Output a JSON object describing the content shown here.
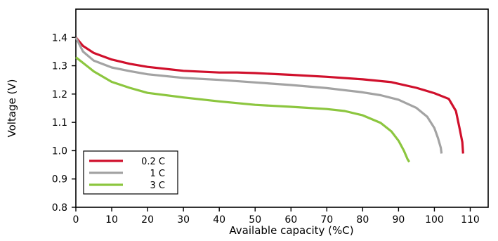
{
  "chart_data": {
    "type": "line",
    "title": "",
    "xlabel": "Available capacity (%C)",
    "ylabel": "Voltage (V)",
    "xlim": [
      0,
      115
    ],
    "ylim": [
      0.8,
      1.5
    ],
    "x_ticks": [
      "0",
      "10",
      "20",
      "30",
      "40",
      "50",
      "60",
      "70",
      "80",
      "90",
      "100",
      "110"
    ],
    "y_ticks": [
      "0.8",
      "0.9",
      "1.0",
      "1.1",
      "1.2",
      "1.3",
      "1.4"
    ],
    "grid": false,
    "legend_position": "bottom-left",
    "series": [
      {
        "name": "0.2 C",
        "color": "#d0102c",
        "x": [
          0,
          2,
          5,
          10,
          15,
          20,
          30,
          40,
          45,
          50,
          60,
          70,
          80,
          88,
          95,
          100,
          104,
          106,
          107,
          107.8,
          108
        ],
        "y": [
          1.4,
          1.37,
          1.345,
          1.322,
          1.307,
          1.296,
          1.282,
          1.276,
          1.276,
          1.274,
          1.268,
          1.261,
          1.252,
          1.242,
          1.222,
          1.203,
          1.183,
          1.14,
          1.08,
          1.03,
          0.99
        ]
      },
      {
        "name": "1 C",
        "color": "#a3a3a3",
        "x": [
          0,
          2,
          5,
          10,
          15,
          20,
          30,
          40,
          50,
          60,
          70,
          80,
          85,
          90,
          95,
          98,
          100,
          101,
          101.8,
          102
        ],
        "y": [
          1.4,
          1.35,
          1.318,
          1.294,
          1.281,
          1.27,
          1.257,
          1.25,
          1.241,
          1.232,
          1.221,
          1.206,
          1.196,
          1.18,
          1.151,
          1.12,
          1.08,
          1.045,
          1.01,
          0.99
        ]
      },
      {
        "name": "3 C",
        "color": "#8cc63f",
        "x": [
          0,
          2,
          5,
          10,
          15,
          20,
          30,
          40,
          50,
          60,
          70,
          75,
          80,
          85,
          88,
          90,
          91.5,
          92.5,
          93
        ],
        "y": [
          1.33,
          1.31,
          1.28,
          1.243,
          1.222,
          1.204,
          1.188,
          1.174,
          1.162,
          1.155,
          1.147,
          1.14,
          1.125,
          1.098,
          1.068,
          1.035,
          1.0,
          0.97,
          0.96
        ]
      }
    ]
  }
}
